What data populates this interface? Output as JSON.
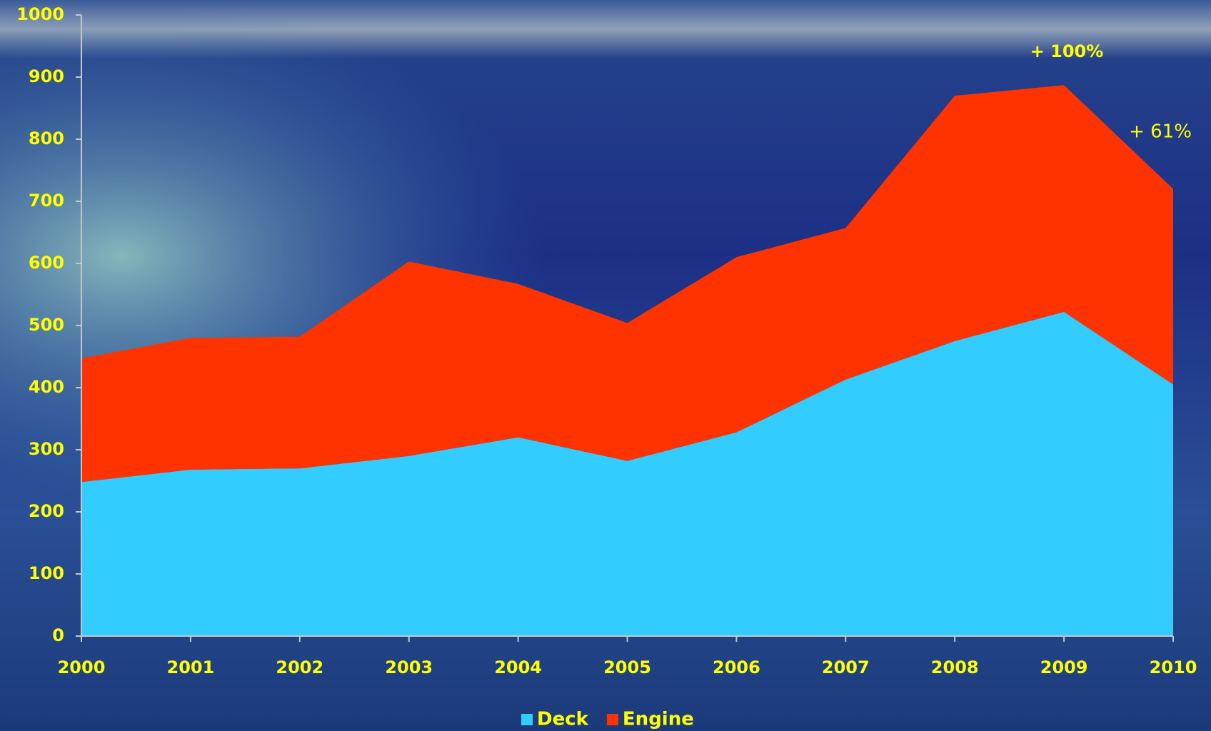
{
  "chart_data": {
    "type": "stacked_area",
    "categories": [
      "2000",
      "2001",
      "2002",
      "2003",
      "2004",
      "2005",
      "2006",
      "2007",
      "2008",
      "2009",
      "2010"
    ],
    "series": [
      {
        "name": "Deck",
        "color": "#33ccff",
        "values": [
          248,
          268,
          270,
          290,
          320,
          282,
          328,
          413,
          475,
          522,
          405
        ]
      },
      {
        "name": "Engine",
        "color": "#ff3300",
        "values": [
          199,
          212,
          212,
          313,
          247,
          222,
          282,
          244,
          395,
          365,
          315
        ]
      }
    ],
    "ylim": [
      0,
      1000
    ],
    "yticks": [
      0,
      100,
      200,
      300,
      400,
      500,
      600,
      700,
      800,
      900,
      1000
    ],
    "grid": false,
    "legend": "bottom",
    "annotations": [
      {
        "text": "+ 100%"
      },
      {
        "text": "+ 61%"
      }
    ]
  }
}
